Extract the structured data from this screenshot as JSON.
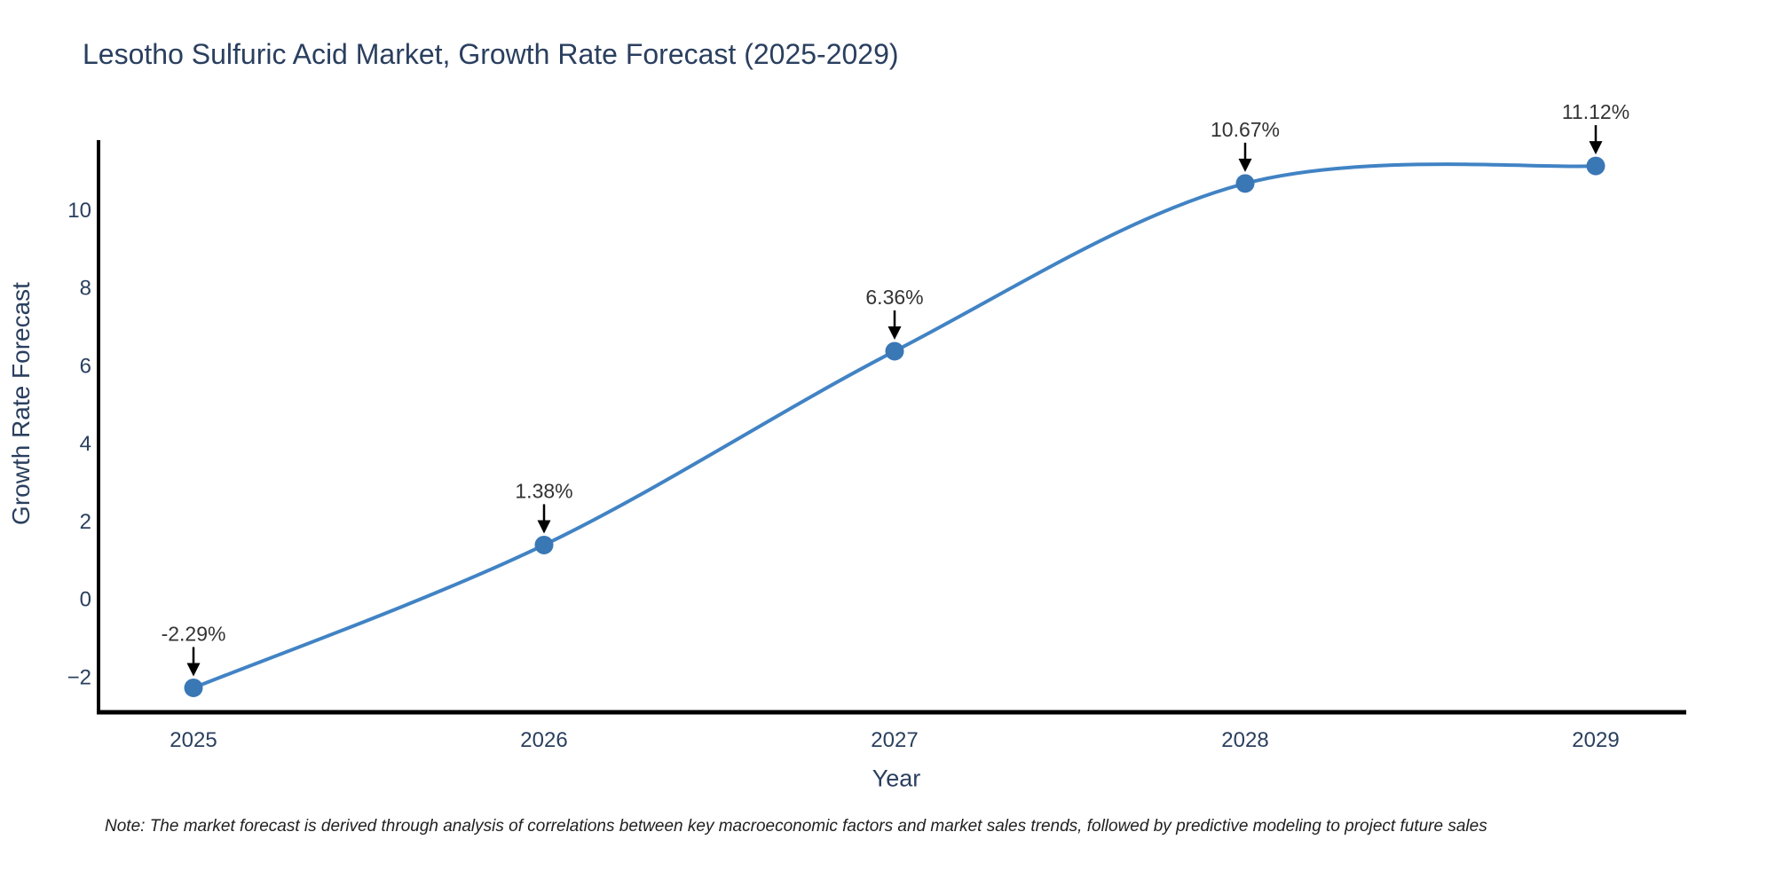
{
  "chart_data": {
    "type": "line",
    "curve": "spline",
    "title": "Lesotho Sulfuric Acid Market, Growth Rate Forecast (2025-2029)",
    "xlabel": "Year",
    "ylabel": "Growth Rate Forecast",
    "categories": [
      "2025",
      "2026",
      "2027",
      "2028",
      "2029"
    ],
    "values": [
      -2.29,
      1.38,
      6.36,
      10.67,
      11.12
    ],
    "point_labels": [
      "-2.29%",
      "1.38%",
      "6.36%",
      "10.67%",
      "11.12%"
    ],
    "yticks": [
      -2,
      0,
      2,
      4,
      6,
      8,
      10
    ],
    "ylim": [
      -2.96,
      11.74
    ],
    "grid": false,
    "legend": "none",
    "line_color": "#4183c4",
    "marker_color": "#3a77b5",
    "axis_color": "#000000",
    "arrow_color": "#000000",
    "text_color": "#2a3f5f",
    "label_color": "#333333"
  },
  "note": {
    "text": "Note: The market forecast is derived through analysis of correlations between key macroeconomic factors and market sales trends, followed by predictive modeling to project future sales"
  }
}
